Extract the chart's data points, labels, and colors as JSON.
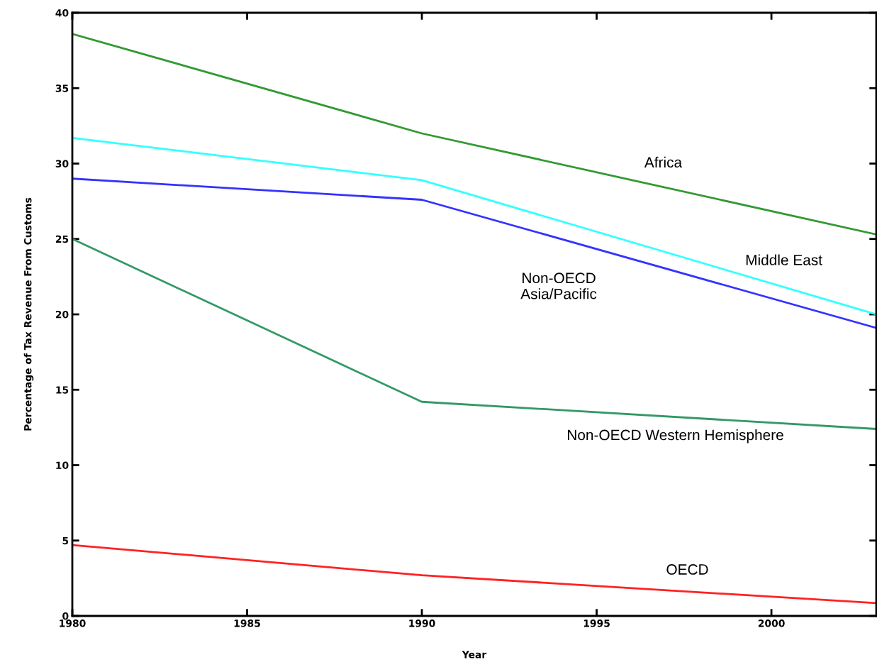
{
  "chart_data": {
    "type": "line",
    "xlabel": "Year",
    "ylabel": "Percentage of Tax Revenue From Customs",
    "x": [
      1980,
      1990,
      2003
    ],
    "series": [
      {
        "name": "Africa",
        "color": "#339933",
        "values": [
          38.6,
          32.0,
          25.3
        ]
      },
      {
        "name": "Middle East",
        "color": "#33ffff",
        "values": [
          31.7,
          28.9,
          20.0
        ]
      },
      {
        "name": "Non-OECD\nAsia/Pacific",
        "color": "#3333ff",
        "values": [
          29.0,
          27.6,
          19.1
        ]
      },
      {
        "name": "Non-OECD Western Hemisphere",
        "color": "#339966",
        "values": [
          25.0,
          14.2,
          12.4
        ]
      },
      {
        "name": "OECD",
        "color": "#ff2222",
        "values": [
          4.7,
          2.7,
          0.85
        ]
      }
    ],
    "xlim": [
      1980,
      2003
    ],
    "xticks": [
      1980,
      1985,
      1990,
      1995,
      2000
    ],
    "ylim": [
      0,
      40
    ],
    "yticks": [
      0,
      5,
      10,
      15,
      20,
      25,
      30,
      35,
      40
    ],
    "marker": "none",
    "line_style": "solid"
  }
}
